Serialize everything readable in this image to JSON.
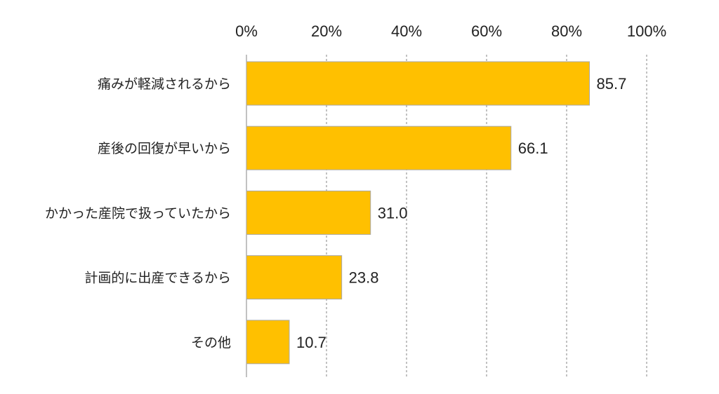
{
  "chart_data": {
    "type": "bar",
    "orientation": "horizontal",
    "categories": [
      "痛みが軽減されるから",
      "産後の回復が早いから",
      "かかった産院で扱っていたから",
      "計画的に出産できるから",
      "その他"
    ],
    "values": [
      85.7,
      66.1,
      31.0,
      23.8,
      10.7
    ],
    "value_labels": [
      "85.7",
      "66.1",
      "31.0",
      "23.8",
      "10.7"
    ],
    "xlim": [
      0,
      100
    ],
    "ticks": [
      "0%",
      "20%",
      "40%",
      "60%",
      "80%",
      "100%"
    ],
    "tick_values": [
      0,
      20,
      40,
      60,
      80,
      100
    ],
    "axis_position": "top",
    "grid": "vertical dashed",
    "legend": "none",
    "bar_color": "#FFC000"
  }
}
